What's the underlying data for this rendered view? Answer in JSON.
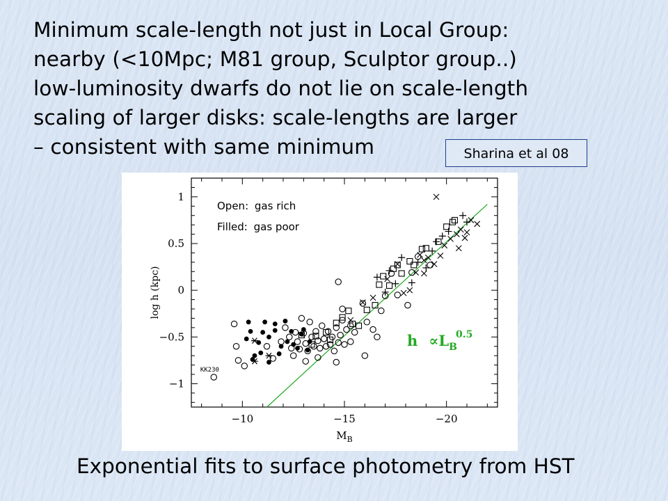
{
  "slide": {
    "lines": [
      "Minimum scale-length not just in Local Group:",
      "nearby (<10Mpc; M81 group, Sculptor group..)",
      "low-luminosity dwarfs do not lie on scale-length",
      "scaling of larger disks: scale-lengths are larger",
      "– consistent with same minimum"
    ],
    "reference": "Sharina et al 08",
    "caption": "Exponential fits to surface photometry from HST",
    "legend": {
      "open_label": "Open:",
      "open_text": "gas rich",
      "filled_label": "Filled:",
      "filled_text": "gas poor"
    }
  },
  "chart_data": {
    "type": "scatter",
    "xlabel": "M",
    "xlabel_sub": "B",
    "ylabel": "log h (kpc)",
    "xlim": [
      -7.5,
      -22.5
    ],
    "ylim": [
      -1.25,
      1.2
    ],
    "x_ticks": [
      -10,
      -15,
      -20
    ],
    "x_tick_labels": [
      "−10",
      "−15",
      "−20"
    ],
    "y_ticks": [
      -1,
      -0.5,
      0,
      0.5,
      1
    ],
    "y_tick_labels": [
      "−1",
      "−0.5",
      "0",
      "0.5",
      "1"
    ],
    "fit_line": {
      "label_main": "h",
      "label_prop": "∝L",
      "label_sub": "B",
      "label_sup": "0.5",
      "color": "#22aa22",
      "points": [
        [
          -11.2,
          -1.25
        ],
        [
          -22.0,
          0.92
        ]
      ]
    },
    "annotations": [
      {
        "text": "KK230",
        "x": -8.4,
        "y": -0.87
      }
    ],
    "series": [
      {
        "marker": "filled-circle",
        "points": [
          [
            -10.4,
            -0.44
          ],
          [
            -10.2,
            -0.52
          ],
          [
            -10.6,
            -0.7
          ],
          [
            -10.5,
            -0.74
          ],
          [
            -11.0,
            -0.45
          ],
          [
            -11.3,
            -0.5
          ],
          [
            -11.6,
            -0.43
          ],
          [
            -11.9,
            -0.6
          ],
          [
            -12.4,
            -0.44
          ],
          [
            -12.9,
            -0.47
          ],
          [
            -13.3,
            -0.55
          ],
          [
            -11.1,
            -0.34
          ],
          [
            -11.6,
            -0.36
          ],
          [
            -12.1,
            -0.33
          ],
          [
            -10.9,
            -0.67
          ],
          [
            -11.3,
            -0.77
          ],
          [
            -12.2,
            -0.55
          ],
          [
            -12.7,
            -0.62
          ],
          [
            -13.2,
            -0.64
          ],
          [
            -10.3,
            -0.34
          ],
          [
            -11.8,
            -0.68
          ],
          [
            -12.5,
            -0.58
          ],
          [
            -13.0,
            -0.42
          ],
          [
            -10.8,
            -0.56
          ]
        ]
      },
      {
        "marker": "open-circle",
        "points": [
          [
            -8.6,
            -0.93
          ],
          [
            -9.6,
            -0.36
          ],
          [
            -9.7,
            -0.6
          ],
          [
            -9.8,
            -0.75
          ],
          [
            -10.1,
            -0.81
          ],
          [
            -11.2,
            -0.6
          ],
          [
            -11.5,
            -0.73
          ],
          [
            -11.9,
            -0.55
          ],
          [
            -12.1,
            -0.4
          ],
          [
            -12.3,
            -0.5
          ],
          [
            -12.4,
            -0.62
          ],
          [
            -12.5,
            -0.7
          ],
          [
            -12.6,
            -0.45
          ],
          [
            -12.7,
            -0.55
          ],
          [
            -12.8,
            -0.63
          ],
          [
            -12.9,
            -0.3
          ],
          [
            -13.0,
            -0.46
          ],
          [
            -13.1,
            -0.57
          ],
          [
            -13.2,
            -0.65
          ],
          [
            -13.3,
            -0.34
          ],
          [
            -13.4,
            -0.5
          ],
          [
            -13.5,
            -0.6
          ],
          [
            -13.6,
            -0.44
          ],
          [
            -13.7,
            -0.54
          ],
          [
            -13.8,
            -0.62
          ],
          [
            -13.9,
            -0.38
          ],
          [
            -14.0,
            -0.52
          ],
          [
            -14.1,
            -0.6
          ],
          [
            -14.2,
            -0.44
          ],
          [
            -14.3,
            -0.58
          ],
          [
            -14.4,
            -0.5
          ],
          [
            -14.5,
            -0.65
          ],
          [
            -14.6,
            -0.4
          ],
          [
            -14.7,
            -0.56
          ],
          [
            -14.8,
            -0.48
          ],
          [
            -14.9,
            -0.32
          ],
          [
            -15.0,
            -0.58
          ],
          [
            -15.1,
            -0.42
          ],
          [
            -15.3,
            -0.55
          ],
          [
            -15.5,
            -0.45
          ],
          [
            -14.6,
            -0.77
          ],
          [
            -14.9,
            -0.2
          ],
          [
            -15.3,
            -0.38
          ],
          [
            -16.0,
            -0.7
          ],
          [
            -16.4,
            -0.42
          ],
          [
            -16.6,
            -0.5
          ],
          [
            -16.8,
            -0.22
          ],
          [
            -17.0,
            -0.06
          ],
          [
            -17.3,
            0.18
          ],
          [
            -17.6,
            -0.05
          ],
          [
            -18.1,
            -0.16
          ],
          [
            -18.3,
            0.19
          ],
          [
            -18.6,
            0.36
          ],
          [
            -19.2,
            0.27
          ],
          [
            -15.9,
            -0.14
          ],
          [
            -16.1,
            -0.34
          ],
          [
            -14.7,
            0.09
          ],
          [
            -13.7,
            -0.72
          ],
          [
            -13.1,
            -0.76
          ]
        ]
      },
      {
        "marker": "open-square",
        "points": [
          [
            -12.9,
            -0.48
          ],
          [
            -13.4,
            -0.58
          ],
          [
            -13.6,
            -0.49
          ],
          [
            -14.1,
            -0.45
          ],
          [
            -14.3,
            -0.53
          ],
          [
            -14.6,
            -0.35
          ],
          [
            -14.9,
            -0.29
          ],
          [
            -15.2,
            -0.22
          ],
          [
            -15.4,
            -0.36
          ],
          [
            -15.7,
            -0.38
          ],
          [
            -16.1,
            -0.21
          ],
          [
            -16.5,
            -0.16
          ],
          [
            -16.7,
            0.06
          ],
          [
            -16.9,
            0.15
          ],
          [
            -17.2,
            0.05
          ],
          [
            -17.4,
            0.23
          ],
          [
            -17.6,
            0.27
          ],
          [
            -17.8,
            0.18
          ],
          [
            -18.2,
            0.31
          ],
          [
            -18.4,
            0.27
          ],
          [
            -18.8,
            0.44
          ],
          [
            -19.0,
            0.45
          ],
          [
            -19.6,
            0.52
          ],
          [
            -20.0,
            0.68
          ],
          [
            -20.3,
            0.73
          ],
          [
            -20.4,
            0.75
          ]
        ]
      },
      {
        "marker": "cross",
        "points": [
          [
            -15.3,
            -0.32
          ],
          [
            -15.9,
            -0.13
          ],
          [
            -16.4,
            -0.08
          ],
          [
            -17.1,
            0.12
          ],
          [
            -17.6,
            0.28
          ],
          [
            -17.9,
            -0.03
          ],
          [
            -18.2,
            0.0
          ],
          [
            -18.5,
            0.19
          ],
          [
            -18.7,
            0.38
          ],
          [
            -18.9,
            0.18
          ],
          [
            -19.1,
            0.35
          ],
          [
            -19.4,
            0.28
          ],
          [
            -19.7,
            0.37
          ],
          [
            -19.9,
            0.48
          ],
          [
            -20.2,
            0.55
          ],
          [
            -20.5,
            0.6
          ],
          [
            -20.7,
            0.65
          ],
          [
            -20.9,
            0.56
          ],
          [
            -21.2,
            0.75
          ],
          [
            -21.5,
            0.71
          ],
          [
            -19.5,
            1.0
          ],
          [
            -18.9,
            0.32
          ],
          [
            -20.6,
            0.45
          ],
          [
            -21.0,
            0.62
          ]
        ]
      },
      {
        "marker": "plus",
        "points": [
          [
            -16.6,
            0.14
          ],
          [
            -17.2,
            0.21
          ],
          [
            -17.5,
            0.07
          ],
          [
            -17.8,
            0.35
          ],
          [
            -18.3,
            0.08
          ],
          [
            -18.6,
            0.3
          ],
          [
            -19.0,
            0.24
          ],
          [
            -19.3,
            0.42
          ],
          [
            -19.5,
            0.52
          ],
          [
            -19.8,
            0.58
          ],
          [
            -20.1,
            0.63
          ],
          [
            -20.8,
            0.8
          ],
          [
            -21.0,
            0.73
          ],
          [
            -17.0,
            -0.02
          ]
        ]
      },
      {
        "marker": "asterisk",
        "points": [
          [
            -10.6,
            -0.54
          ],
          [
            -10.6,
            -0.76
          ],
          [
            -11.3,
            -0.7
          ]
        ]
      }
    ]
  }
}
